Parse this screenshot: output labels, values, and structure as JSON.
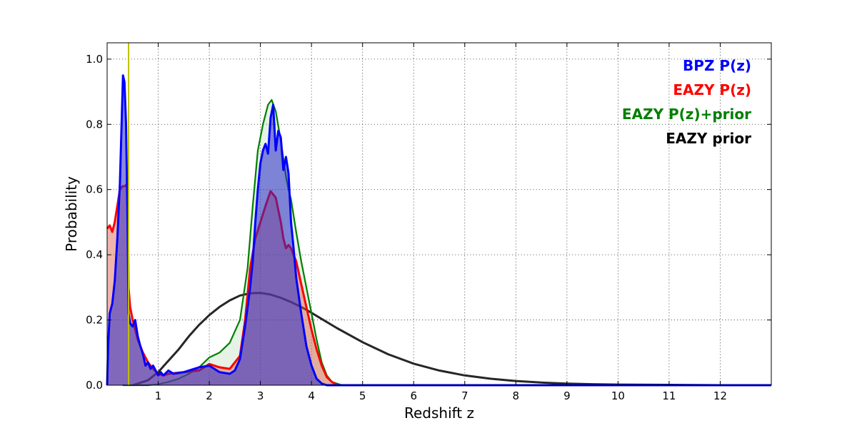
{
  "chart_data": {
    "type": "area",
    "xlabel": "Redshift z",
    "ylabel": "Probability",
    "xlim": [
      0,
      13
    ],
    "ylim": [
      0,
      1.05
    ],
    "x_ticks": [
      1,
      2,
      3,
      4,
      5,
      6,
      7,
      8,
      9,
      10,
      11,
      12
    ],
    "y_ticks": [
      0.0,
      0.2,
      0.4,
      0.6,
      0.8,
      1.0
    ],
    "y_tick_labels": [
      "0.0",
      "0.2",
      "0.4",
      "0.6",
      "0.8",
      "1.0"
    ],
    "grid": true,
    "legend_position": "top-right",
    "vertical_line": {
      "x": 0.42,
      "color": "#bfbf00"
    },
    "series": [
      {
        "name": "EAZY prior",
        "color": "#262626",
        "fill": null,
        "points": [
          [
            0.5,
            0.0
          ],
          [
            0.8,
            0.015
          ],
          [
            1.0,
            0.04
          ],
          [
            1.2,
            0.075
          ],
          [
            1.4,
            0.11
          ],
          [
            1.6,
            0.15
          ],
          [
            1.8,
            0.185
          ],
          [
            2.0,
            0.215
          ],
          [
            2.2,
            0.24
          ],
          [
            2.4,
            0.26
          ],
          [
            2.6,
            0.275
          ],
          [
            2.8,
            0.282
          ],
          [
            3.0,
            0.283
          ],
          [
            3.2,
            0.278
          ],
          [
            3.4,
            0.268
          ],
          [
            3.6,
            0.255
          ],
          [
            3.8,
            0.24
          ],
          [
            4.0,
            0.222
          ],
          [
            4.2,
            0.203
          ],
          [
            4.5,
            0.175
          ],
          [
            5.0,
            0.132
          ],
          [
            5.5,
            0.095
          ],
          [
            6.0,
            0.066
          ],
          [
            6.5,
            0.045
          ],
          [
            7.0,
            0.03
          ],
          [
            7.5,
            0.02
          ],
          [
            8.0,
            0.013
          ],
          [
            8.5,
            0.008
          ],
          [
            9.0,
            0.005
          ],
          [
            9.5,
            0.003
          ],
          [
            10.0,
            0.002
          ],
          [
            11.0,
            0.001
          ],
          [
            12.0,
            0.0
          ]
        ]
      },
      {
        "name": "EAZY P(z)+prior",
        "color": "#007f00",
        "fill": "rgba(0,128,0,0.10)",
        "points": [
          [
            0.3,
            0.0
          ],
          [
            0.8,
            0.0
          ],
          [
            1.0,
            0.003
          ],
          [
            1.2,
            0.01
          ],
          [
            1.4,
            0.02
          ],
          [
            1.6,
            0.035
          ],
          [
            1.8,
            0.055
          ],
          [
            2.0,
            0.085
          ],
          [
            2.2,
            0.1
          ],
          [
            2.4,
            0.13
          ],
          [
            2.6,
            0.2
          ],
          [
            2.75,
            0.36
          ],
          [
            2.85,
            0.55
          ],
          [
            2.95,
            0.72
          ],
          [
            3.05,
            0.8
          ],
          [
            3.15,
            0.86
          ],
          [
            3.22,
            0.875
          ],
          [
            3.3,
            0.84
          ],
          [
            3.4,
            0.75
          ],
          [
            3.5,
            0.64
          ],
          [
            3.55,
            0.6
          ],
          [
            3.6,
            0.57
          ],
          [
            3.7,
            0.47
          ],
          [
            3.8,
            0.38
          ],
          [
            3.9,
            0.3
          ],
          [
            4.0,
            0.22
          ],
          [
            4.1,
            0.14
          ],
          [
            4.2,
            0.07
          ],
          [
            4.3,
            0.03
          ],
          [
            4.4,
            0.01
          ],
          [
            4.6,
            0.0
          ],
          [
            13.0,
            0.0
          ]
        ]
      },
      {
        "name": "EAZY P(z)",
        "color": "#ff0000",
        "fill": "rgba(220,90,70,0.45)",
        "points": [
          [
            0.0,
            0.48
          ],
          [
            0.05,
            0.49
          ],
          [
            0.1,
            0.47
          ],
          [
            0.15,
            0.5
          ],
          [
            0.2,
            0.55
          ],
          [
            0.25,
            0.6
          ],
          [
            0.3,
            0.61
          ],
          [
            0.35,
            0.61
          ],
          [
            0.4,
            0.62
          ],
          [
            0.42,
            0.3
          ],
          [
            0.45,
            0.24
          ],
          [
            0.5,
            0.2
          ],
          [
            0.55,
            0.17
          ],
          [
            0.6,
            0.14
          ],
          [
            0.7,
            0.1
          ],
          [
            0.8,
            0.07
          ],
          [
            0.9,
            0.05
          ],
          [
            1.0,
            0.035
          ],
          [
            1.1,
            0.03
          ],
          [
            1.2,
            0.035
          ],
          [
            1.5,
            0.04
          ],
          [
            1.8,
            0.045
          ],
          [
            2.0,
            0.065
          ],
          [
            2.2,
            0.055
          ],
          [
            2.4,
            0.05
          ],
          [
            2.6,
            0.09
          ],
          [
            2.7,
            0.2
          ],
          [
            2.8,
            0.36
          ],
          [
            2.9,
            0.45
          ],
          [
            3.0,
            0.5
          ],
          [
            3.1,
            0.55
          ],
          [
            3.2,
            0.595
          ],
          [
            3.3,
            0.575
          ],
          [
            3.4,
            0.5
          ],
          [
            3.45,
            0.45
          ],
          [
            3.5,
            0.42
          ],
          [
            3.55,
            0.43
          ],
          [
            3.6,
            0.42
          ],
          [
            3.7,
            0.38
          ],
          [
            3.8,
            0.31
          ],
          [
            3.9,
            0.24
          ],
          [
            4.0,
            0.17
          ],
          [
            4.1,
            0.11
          ],
          [
            4.2,
            0.06
          ],
          [
            4.3,
            0.025
          ],
          [
            4.4,
            0.01
          ],
          [
            4.5,
            0.0
          ],
          [
            13.0,
            0.0
          ]
        ]
      },
      {
        "name": "BPZ P(z)",
        "color": "#0000ff",
        "fill": "rgba(40,40,200,0.55)",
        "points": [
          [
            0.0,
            0.0
          ],
          [
            0.02,
            0.12
          ],
          [
            0.05,
            0.22
          ],
          [
            0.1,
            0.25
          ],
          [
            0.15,
            0.32
          ],
          [
            0.2,
            0.45
          ],
          [
            0.25,
            0.62
          ],
          [
            0.28,
            0.78
          ],
          [
            0.31,
            0.95
          ],
          [
            0.34,
            0.93
          ],
          [
            0.37,
            0.8
          ],
          [
            0.4,
            0.5
          ],
          [
            0.42,
            0.22
          ],
          [
            0.45,
            0.19
          ],
          [
            0.5,
            0.18
          ],
          [
            0.55,
            0.2
          ],
          [
            0.6,
            0.15
          ],
          [
            0.65,
            0.12
          ],
          [
            0.7,
            0.095
          ],
          [
            0.75,
            0.06
          ],
          [
            0.8,
            0.07
          ],
          [
            0.85,
            0.05
          ],
          [
            0.9,
            0.06
          ],
          [
            1.0,
            0.03
          ],
          [
            1.05,
            0.04
          ],
          [
            1.1,
            0.03
          ],
          [
            1.2,
            0.045
          ],
          [
            1.3,
            0.035
          ],
          [
            1.5,
            0.04
          ],
          [
            1.8,
            0.055
          ],
          [
            2.0,
            0.06
          ],
          [
            2.2,
            0.04
          ],
          [
            2.4,
            0.035
          ],
          [
            2.5,
            0.045
          ],
          [
            2.6,
            0.08
          ],
          [
            2.7,
            0.18
          ],
          [
            2.8,
            0.3
          ],
          [
            2.85,
            0.38
          ],
          [
            2.9,
            0.5
          ],
          [
            2.95,
            0.6
          ],
          [
            3.0,
            0.68
          ],
          [
            3.05,
            0.72
          ],
          [
            3.1,
            0.74
          ],
          [
            3.15,
            0.71
          ],
          [
            3.2,
            0.82
          ],
          [
            3.25,
            0.86
          ],
          [
            3.3,
            0.72
          ],
          [
            3.35,
            0.78
          ],
          [
            3.4,
            0.76
          ],
          [
            3.45,
            0.66
          ],
          [
            3.5,
            0.7
          ],
          [
            3.55,
            0.65
          ],
          [
            3.6,
            0.5
          ],
          [
            3.65,
            0.42
          ],
          [
            3.7,
            0.33
          ],
          [
            3.8,
            0.22
          ],
          [
            3.9,
            0.12
          ],
          [
            4.0,
            0.06
          ],
          [
            4.1,
            0.02
          ],
          [
            4.2,
            0.005
          ],
          [
            4.3,
            0.0
          ],
          [
            13.0,
            0.0
          ]
        ]
      }
    ],
    "legend": [
      {
        "label": "BPZ P(z)",
        "color": "#0000ff"
      },
      {
        "label": "EAZY P(z)",
        "color": "#ff0000"
      },
      {
        "label": "EAZY P(z)+prior",
        "color": "#007f00"
      },
      {
        "label": "EAZY prior",
        "color": "#000000"
      }
    ]
  }
}
